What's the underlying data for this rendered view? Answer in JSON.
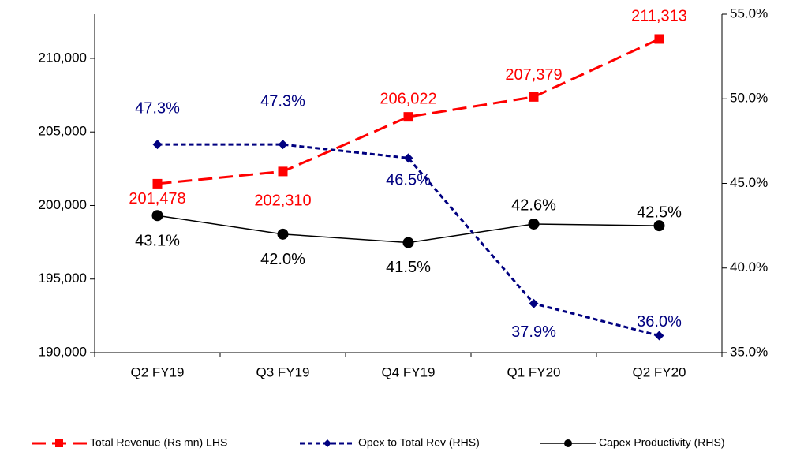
{
  "chart_data": {
    "type": "line",
    "categories": [
      "Q2 FY19",
      "Q3 FY19",
      "Q4 FY19",
      "Q1 FY20",
      "Q2 FY20"
    ],
    "series": [
      {
        "name": "Total Revenue (Rs mn) LHS",
        "color": "#ff0000",
        "values": [
          201478,
          202310,
          206022,
          207379,
          211313
        ],
        "value_labels": [
          "201,478",
          "202,310",
          "206,022",
          "207,379",
          "211,313"
        ]
      },
      {
        "name": "Opex to Total Rev (RHS)",
        "color": "#000080",
        "axis": "y2",
        "values": [
          47.3,
          47.3,
          46.5,
          37.9,
          36.0
        ],
        "value_labels": [
          "47.3%",
          "47.3%",
          "46.5%",
          "37.9%",
          "36.0%"
        ]
      },
      {
        "name": "Capex Productivity (RHS)",
        "color": "#000000",
        "axis": "y2",
        "values": [
          43.1,
          42.0,
          41.5,
          42.6,
          42.5
        ],
        "value_labels": [
          "43.1%",
          "42.0%",
          "41.5%",
          "42.6%",
          "42.5%"
        ]
      }
    ],
    "ylim": [
      190000,
      213000
    ],
    "yticks": [
      {
        "value": 190000,
        "label": "190,000"
      },
      {
        "value": 195000,
        "label": "195,000"
      },
      {
        "value": 200000,
        "label": "200,000"
      },
      {
        "value": 205000,
        "label": "205,000"
      },
      {
        "value": 210000,
        "label": "210,000"
      }
    ],
    "y2lim": [
      35,
      55
    ],
    "y2ticks": [
      {
        "value": 35,
        "label": "35.0%"
      },
      {
        "value": 40,
        "label": "40.0%"
      },
      {
        "value": 45,
        "label": "45.0%"
      },
      {
        "value": 50,
        "label": "50.0%"
      },
      {
        "value": 55,
        "label": "55.0%"
      }
    ],
    "grid": false,
    "legend": "bottom"
  }
}
